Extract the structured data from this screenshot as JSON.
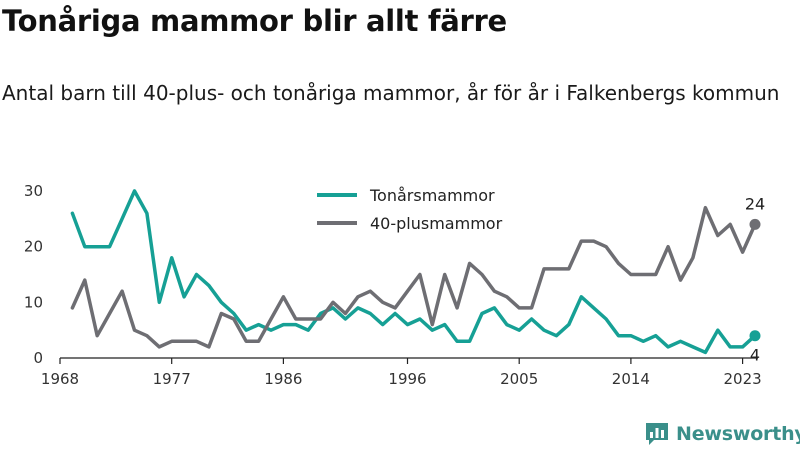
{
  "title": "Tonåriga mammor blir allt färre",
  "subtitle": "Antal barn till 40-plus- och tonåriga mammor, år för år i Falkenbergs kommun",
  "brand": {
    "name": "Newsworthy"
  },
  "colors": {
    "teen": "#16a095",
    "forty": "#6e6e73",
    "axis": "#222222",
    "brand": "#3a8f8a"
  },
  "chart_data": {
    "type": "line",
    "title": "Tonåriga mammor blir allt färre",
    "subtitle": "Antal barn till 40-plus- och tonåriga mammor, år för år i Falkenbergs kommun",
    "xlabel": "",
    "ylabel": "",
    "xlim": [
      1968,
      2024
    ],
    "ylim": [
      0,
      30
    ],
    "xticks": [
      1968,
      1977,
      1986,
      1996,
      2005,
      2014,
      2023
    ],
    "yticks": [
      0,
      10,
      20,
      30
    ],
    "grid": false,
    "legend": "top-center",
    "x": [
      1969,
      1970,
      1971,
      1972,
      1973,
      1974,
      1975,
      1976,
      1977,
      1978,
      1979,
      1980,
      1981,
      1982,
      1983,
      1984,
      1985,
      1986,
      1987,
      1988,
      1989,
      1990,
      1991,
      1992,
      1993,
      1994,
      1995,
      1996,
      1997,
      1998,
      1999,
      2000,
      2001,
      2002,
      2003,
      2004,
      2005,
      2006,
      2007,
      2008,
      2009,
      2010,
      2011,
      2012,
      2013,
      2014,
      2015,
      2016,
      2017,
      2018,
      2019,
      2020,
      2021,
      2022,
      2023,
      2024
    ],
    "series": [
      {
        "name": "Tonårsmammor",
        "color": "#16a095",
        "end_label": "4",
        "values": [
          26,
          20,
          20,
          20,
          25,
          30,
          26,
          10,
          18,
          11,
          15,
          13,
          10,
          8,
          5,
          6,
          5,
          6,
          6,
          5,
          8,
          9,
          7,
          9,
          8,
          6,
          8,
          6,
          7,
          5,
          6,
          3,
          3,
          8,
          9,
          6,
          5,
          7,
          5,
          4,
          6,
          11,
          9,
          7,
          4,
          4,
          3,
          4,
          2,
          3,
          2,
          1,
          5,
          2,
          2,
          4
        ]
      },
      {
        "name": "40-plusmammor",
        "color": "#6e6e73",
        "end_label": "24",
        "values": [
          9,
          14,
          4,
          8,
          12,
          5,
          4,
          2,
          3,
          3,
          3,
          2,
          8,
          7,
          3,
          3,
          7,
          11,
          7,
          7,
          7,
          10,
          8,
          11,
          12,
          10,
          9,
          12,
          15,
          6,
          15,
          9,
          17,
          15,
          12,
          11,
          9,
          9,
          16,
          16,
          16,
          21,
          21,
          20,
          17,
          15,
          15,
          15,
          20,
          14,
          18,
          27,
          22,
          24,
          19,
          24
        ]
      }
    ]
  }
}
